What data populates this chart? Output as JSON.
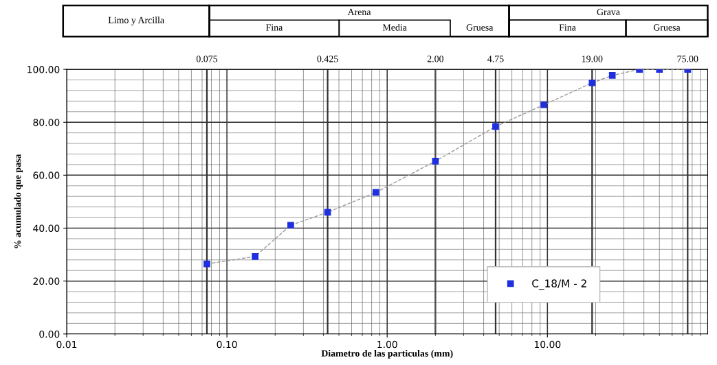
{
  "chart_data": {
    "type": "line",
    "xlabel": "Diametro de las particulas (mm)",
    "ylabel": "% acumulado que pasa",
    "log": "x",
    "x": [
      0.075,
      0.15,
      0.25,
      0.425,
      0.85,
      2.0,
      4.75,
      9.5,
      19.0,
      25.4,
      37.5,
      50.0,
      75.0
    ],
    "series": [
      {
        "name": "C_18/M - 2",
        "color": "#1f2fe0",
        "values": [
          26.5,
          29.3,
          41.1,
          46.0,
          53.5,
          65.3,
          78.4,
          86.6,
          94.9,
          97.7,
          100.0,
          100.0,
          100.0
        ]
      }
    ],
    "marker": "square",
    "line_style": "dashed",
    "xlim": [
      0.01,
      100
    ],
    "xticks": [
      {
        "value": 0.01,
        "label": "0.01"
      },
      {
        "value": 0.1,
        "label": "0.10"
      },
      {
        "value": 1,
        "label": "1.00"
      },
      {
        "value": 10,
        "label": "10.00"
      }
    ],
    "ylim": [
      0,
      100
    ],
    "yticks": [
      {
        "value": 0,
        "label": "0.00"
      },
      {
        "value": 20,
        "label": "20.00"
      },
      {
        "value": 40,
        "label": "40.00"
      },
      {
        "value": 60,
        "label": "60.00"
      },
      {
        "value": 80,
        "label": "80.00"
      },
      {
        "value": 100,
        "label": "100.00"
      }
    ],
    "grid": true,
    "legend": "bottom right",
    "ref_lines": [
      {
        "axis": "x",
        "value": 0.075,
        "label": "0.075",
        "color": "#333333"
      },
      {
        "axis": "x",
        "value": 0.425,
        "label": "0.425",
        "color": "#333333"
      },
      {
        "axis": "x",
        "value": 2,
        "label": "2.00",
        "color": "#333333"
      },
      {
        "axis": "x",
        "value": 4.75,
        "label": "4.75",
        "color": "#333333"
      },
      {
        "axis": "x",
        "value": 19,
        "label": "19.00",
        "color": "#333333"
      },
      {
        "axis": "x",
        "value": 75,
        "label": "75.00",
        "color": "#333333"
      }
    ],
    "annotations": [
      "Limo y Arcilla",
      "Arena",
      "Fina",
      "Media",
      "Gruesa",
      "Grava",
      "Fina",
      "Gruesa"
    ]
  }
}
